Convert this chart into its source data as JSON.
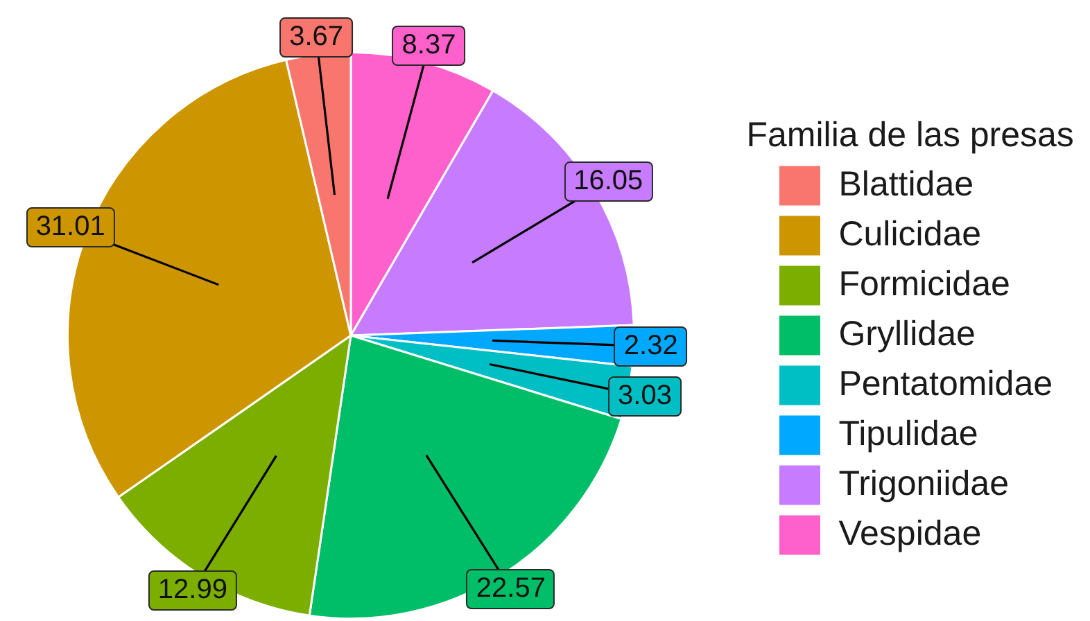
{
  "chart_data": {
    "type": "pie",
    "legend_title": "Familia de las presas",
    "categories": [
      "Blattidae",
      "Culicidae",
      "Formicidae",
      "Gryllidae",
      "Pentatomidae",
      "Tipulidae",
      "Trigoniidae",
      "Vespidae"
    ],
    "values": [
      3.67,
      31.01,
      12.99,
      22.57,
      3.03,
      2.32,
      16.05,
      8.37
    ],
    "colors": [
      "#f8766d",
      "#cd9600",
      "#7cae00",
      "#00be67",
      "#00bfc4",
      "#00a9ff",
      "#c77cff",
      "#ff61cc"
    ],
    "data_labels": true,
    "legend": "right"
  }
}
